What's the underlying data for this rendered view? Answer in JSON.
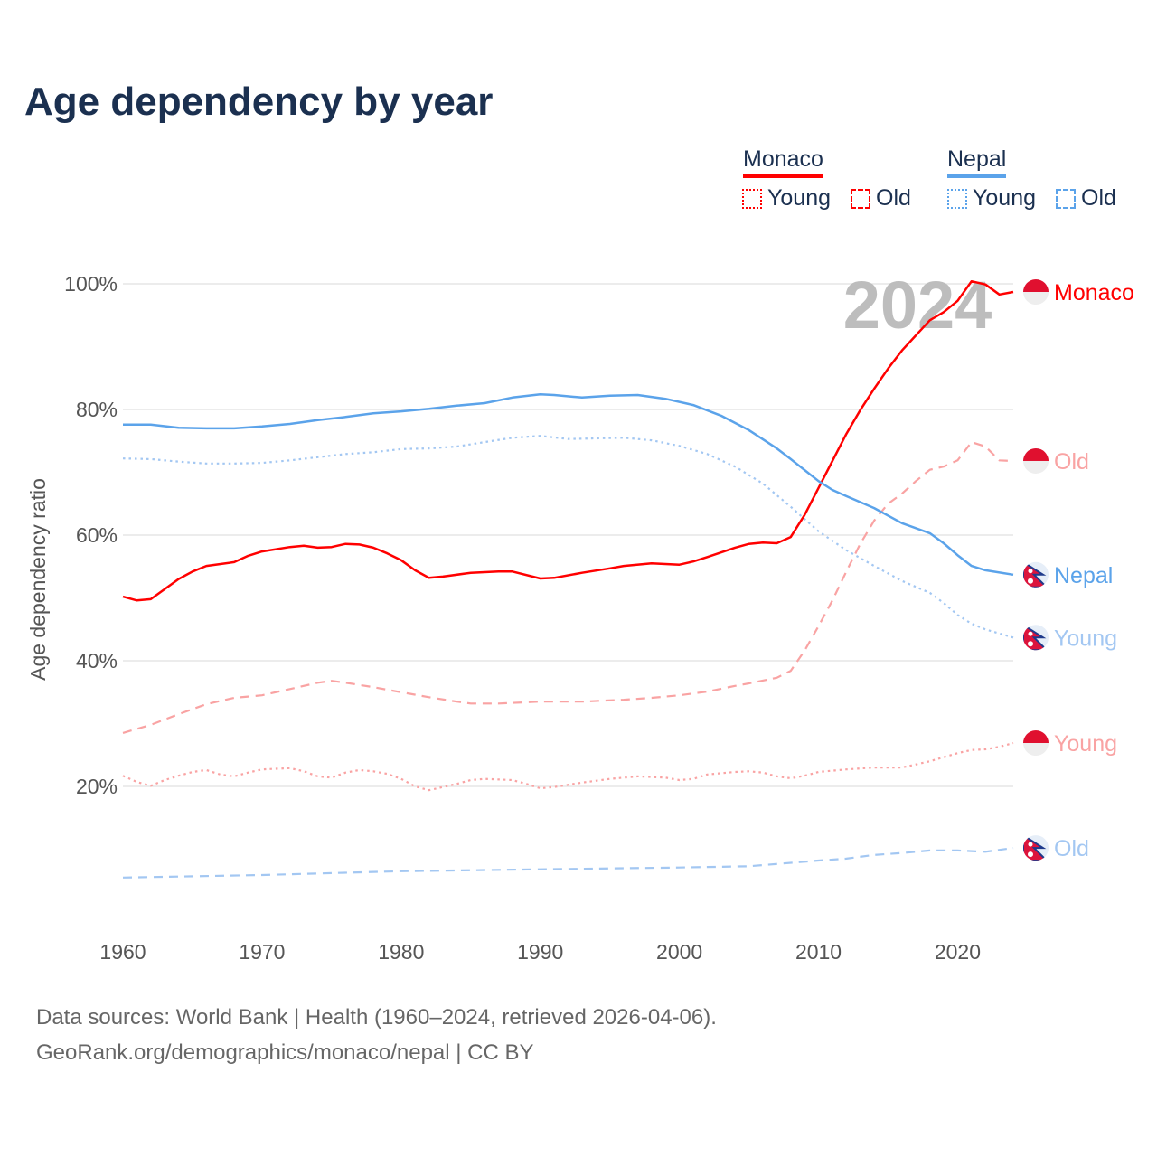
{
  "title": "Age dependency by year",
  "legend": {
    "countries": [
      {
        "name": "Monaco",
        "color": "#ff0000",
        "items": [
          "Young",
          "Old"
        ]
      },
      {
        "name": "Nepal",
        "color": "#5ba3ea",
        "items": [
          "Young",
          "Old"
        ]
      }
    ]
  },
  "year_overlay": "2024",
  "footer": {
    "line1": "Data sources: World Bank | Health (1960–2024, retrieved 2026-04-06).",
    "line2": "GeoRank.org/demographics/monaco/nepal | CC BY"
  },
  "chart_data": {
    "type": "line",
    "title": "Age dependency by year",
    "xlabel": "",
    "ylabel": "Age dependency ratio",
    "xlim": [
      1960,
      2024
    ],
    "ylim": [
      0,
      100
    ],
    "x_ticks": [
      "1960",
      "1970",
      "1980",
      "1990",
      "2000",
      "2010",
      "2020"
    ],
    "y_ticks": [
      "20%",
      "40%",
      "60%",
      "80%",
      "100%"
    ],
    "grid": true,
    "series": [
      {
        "name": "Monaco",
        "end_label": "Monaco",
        "country": "Monaco",
        "style": "solid",
        "color": "#ff0000",
        "points": [
          [
            1960,
            50.2
          ],
          [
            1961,
            49.6
          ],
          [
            1962,
            49.8
          ],
          [
            1964,
            53
          ],
          [
            1965,
            54.2
          ],
          [
            1966,
            55.1
          ],
          [
            1968,
            55.7
          ],
          [
            1969,
            56.7
          ],
          [
            1970,
            57.4
          ],
          [
            1972,
            58.1
          ],
          [
            1973,
            58.3
          ],
          [
            1974,
            58
          ],
          [
            1975,
            58.1
          ],
          [
            1976,
            58.6
          ],
          [
            1977,
            58.5
          ],
          [
            1978,
            58
          ],
          [
            1979,
            57.1
          ],
          [
            1980,
            56
          ],
          [
            1981,
            54.4
          ],
          [
            1982,
            53.2
          ],
          [
            1983,
            53.4
          ],
          [
            1985,
            54
          ],
          [
            1987,
            54.2
          ],
          [
            1988,
            54.2
          ],
          [
            1990,
            53.1
          ],
          [
            1991,
            53.2
          ],
          [
            1993,
            54
          ],
          [
            1995,
            54.7
          ],
          [
            1996,
            55.1
          ],
          [
            1998,
            55.5
          ],
          [
            2000,
            55.3
          ],
          [
            2001,
            55.8
          ],
          [
            2002,
            56.5
          ],
          [
            2004,
            58
          ],
          [
            2005,
            58.6
          ],
          [
            2006,
            58.8
          ],
          [
            2007,
            58.7
          ],
          [
            2008,
            59.7
          ],
          [
            2009,
            63.2
          ],
          [
            2010,
            67.5
          ],
          [
            2011,
            71.8
          ],
          [
            2012,
            76.1
          ],
          [
            2013,
            79.9
          ],
          [
            2014,
            83.3
          ],
          [
            2015,
            86.5
          ],
          [
            2016,
            89.4
          ],
          [
            2017,
            91.8
          ],
          [
            2018,
            94.2
          ],
          [
            2019,
            95.5
          ],
          [
            2020,
            97.3
          ],
          [
            2021,
            100.4
          ],
          [
            2022,
            99.9
          ],
          [
            2023,
            98.3
          ],
          [
            2024,
            98.7
          ]
        ]
      },
      {
        "name": "Monaco Old",
        "end_label": "Old",
        "country": "Monaco",
        "style": "dashed",
        "color": "#f9a3a3",
        "points": [
          [
            1960,
            28.5
          ],
          [
            1962,
            29.8
          ],
          [
            1964,
            31.5
          ],
          [
            1966,
            33.1
          ],
          [
            1968,
            34.1
          ],
          [
            1970,
            34.5
          ],
          [
            1972,
            35.5
          ],
          [
            1974,
            36.5
          ],
          [
            1975,
            36.8
          ],
          [
            1976,
            36.5
          ],
          [
            1978,
            35.8
          ],
          [
            1980,
            35
          ],
          [
            1982,
            34.2
          ],
          [
            1984,
            33.5
          ],
          [
            1985,
            33.2
          ],
          [
            1987,
            33.2
          ],
          [
            1990,
            33.5
          ],
          [
            1993,
            33.5
          ],
          [
            1996,
            33.8
          ],
          [
            1998,
            34.1
          ],
          [
            2000,
            34.5
          ],
          [
            2002,
            35.1
          ],
          [
            2004,
            36
          ],
          [
            2005,
            36.4
          ],
          [
            2007,
            37.3
          ],
          [
            2008,
            38.4
          ],
          [
            2009,
            41.6
          ],
          [
            2010,
            45.5
          ],
          [
            2011,
            49.6
          ],
          [
            2012,
            54.2
          ],
          [
            2013,
            58.6
          ],
          [
            2014,
            62.3
          ],
          [
            2015,
            65
          ],
          [
            2016,
            66.6
          ],
          [
            2017,
            68.6
          ],
          [
            2018,
            70.4
          ],
          [
            2019,
            70.9
          ],
          [
            2020,
            71.9
          ],
          [
            2021,
            74.8
          ],
          [
            2022,
            74.1
          ],
          [
            2023,
            71.9
          ],
          [
            2024,
            71.8
          ]
        ]
      },
      {
        "name": "Monaco Young",
        "end_label": "Young",
        "country": "Monaco",
        "style": "dotted",
        "color": "#f9a3a3",
        "points": [
          [
            1960,
            21.7
          ],
          [
            1961,
            20.7
          ],
          [
            1962,
            20.1
          ],
          [
            1963,
            21
          ],
          [
            1964,
            21.7
          ],
          [
            1965,
            22.3
          ],
          [
            1966,
            22.6
          ],
          [
            1967,
            21.9
          ],
          [
            1968,
            21.6
          ],
          [
            1969,
            22.2
          ],
          [
            1970,
            22.7
          ],
          [
            1972,
            22.9
          ],
          [
            1973,
            22.4
          ],
          [
            1974,
            21.6
          ],
          [
            1975,
            21.4
          ],
          [
            1976,
            22.2
          ],
          [
            1977,
            22.6
          ],
          [
            1978,
            22.4
          ],
          [
            1979,
            22
          ],
          [
            1980,
            21.2
          ],
          [
            1981,
            20
          ],
          [
            1982,
            19.4
          ],
          [
            1983,
            19.9
          ],
          [
            1984,
            20.4
          ],
          [
            1985,
            21
          ],
          [
            1986,
            21.2
          ],
          [
            1988,
            21
          ],
          [
            1989,
            20.4
          ],
          [
            1990,
            19.7
          ],
          [
            1991,
            19.9
          ],
          [
            1993,
            20.6
          ],
          [
            1995,
            21.2
          ],
          [
            1997,
            21.6
          ],
          [
            1999,
            21.4
          ],
          [
            2000,
            21
          ],
          [
            2001,
            21.2
          ],
          [
            2002,
            21.9
          ],
          [
            2004,
            22.3
          ],
          [
            2005,
            22.4
          ],
          [
            2006,
            22.2
          ],
          [
            2007,
            21.6
          ],
          [
            2008,
            21.3
          ],
          [
            2009,
            21.7
          ],
          [
            2010,
            22.3
          ],
          [
            2012,
            22.7
          ],
          [
            2014,
            23
          ],
          [
            2016,
            23
          ],
          [
            2018,
            24
          ],
          [
            2020,
            25.3
          ],
          [
            2021,
            25.8
          ],
          [
            2022,
            25.9
          ],
          [
            2023,
            26.3
          ],
          [
            2024,
            26.9
          ]
        ]
      },
      {
        "name": "Nepal",
        "end_label": "Nepal",
        "country": "Nepal",
        "style": "solid",
        "color": "#5ba3ea",
        "points": [
          [
            1960,
            77.6
          ],
          [
            1962,
            77.6
          ],
          [
            1964,
            77.1
          ],
          [
            1966,
            77
          ],
          [
            1968,
            77
          ],
          [
            1970,
            77.3
          ],
          [
            1972,
            77.7
          ],
          [
            1974,
            78.3
          ],
          [
            1976,
            78.8
          ],
          [
            1978,
            79.4
          ],
          [
            1980,
            79.7
          ],
          [
            1982,
            80.1
          ],
          [
            1984,
            80.6
          ],
          [
            1986,
            81
          ],
          [
            1988,
            81.9
          ],
          [
            1990,
            82.4
          ],
          [
            1991,
            82.3
          ],
          [
            1993,
            81.9
          ],
          [
            1995,
            82.2
          ],
          [
            1997,
            82.3
          ],
          [
            1999,
            81.7
          ],
          [
            2001,
            80.7
          ],
          [
            2003,
            79
          ],
          [
            2005,
            76.7
          ],
          [
            2007,
            73.8
          ],
          [
            2008,
            72.1
          ],
          [
            2010,
            68.6
          ],
          [
            2011,
            67.2
          ],
          [
            2012,
            66.2
          ],
          [
            2014,
            64.3
          ],
          [
            2016,
            61.9
          ],
          [
            2018,
            60.3
          ],
          [
            2019,
            58.7
          ],
          [
            2020,
            56.8
          ],
          [
            2021,
            55.1
          ],
          [
            2022,
            54.4
          ],
          [
            2024,
            53.7
          ]
        ]
      },
      {
        "name": "Nepal Young",
        "end_label": "Young",
        "country": "Nepal",
        "style": "dotted",
        "color": "#a3c7f2",
        "points": [
          [
            1960,
            72.2
          ],
          [
            1962,
            72.1
          ],
          [
            1964,
            71.7
          ],
          [
            1966,
            71.4
          ],
          [
            1968,
            71.4
          ],
          [
            1970,
            71.5
          ],
          [
            1972,
            71.9
          ],
          [
            1974,
            72.4
          ],
          [
            1976,
            72.9
          ],
          [
            1978,
            73.2
          ],
          [
            1980,
            73.7
          ],
          [
            1982,
            73.8
          ],
          [
            1984,
            74.1
          ],
          [
            1986,
            74.8
          ],
          [
            1988,
            75.5
          ],
          [
            1990,
            75.8
          ],
          [
            1992,
            75.3
          ],
          [
            1994,
            75.4
          ],
          [
            1996,
            75.5
          ],
          [
            1998,
            75.1
          ],
          [
            2000,
            74.2
          ],
          [
            2002,
            72.9
          ],
          [
            2004,
            70.9
          ],
          [
            2006,
            68.2
          ],
          [
            2008,
            64.5
          ],
          [
            2010,
            60.6
          ],
          [
            2012,
            57.6
          ],
          [
            2014,
            55.1
          ],
          [
            2016,
            52.7
          ],
          [
            2018,
            50.8
          ],
          [
            2019,
            49.2
          ],
          [
            2020,
            47.3
          ],
          [
            2021,
            45.9
          ],
          [
            2022,
            45
          ],
          [
            2024,
            43.7
          ]
        ]
      },
      {
        "name": "Nepal Old",
        "end_label": "Old",
        "country": "Nepal",
        "style": "dashed",
        "color": "#a3c7f2",
        "points": [
          [
            1960,
            5.5
          ],
          [
            1970,
            5.9
          ],
          [
            1980,
            6.5
          ],
          [
            1990,
            6.8
          ],
          [
            2000,
            7.1
          ],
          [
            2005,
            7.3
          ],
          [
            2010,
            8.2
          ],
          [
            2012,
            8.5
          ],
          [
            2014,
            9.1
          ],
          [
            2016,
            9.4
          ],
          [
            2018,
            9.8
          ],
          [
            2020,
            9.8
          ],
          [
            2022,
            9.6
          ],
          [
            2024,
            10.2
          ]
        ]
      }
    ]
  }
}
